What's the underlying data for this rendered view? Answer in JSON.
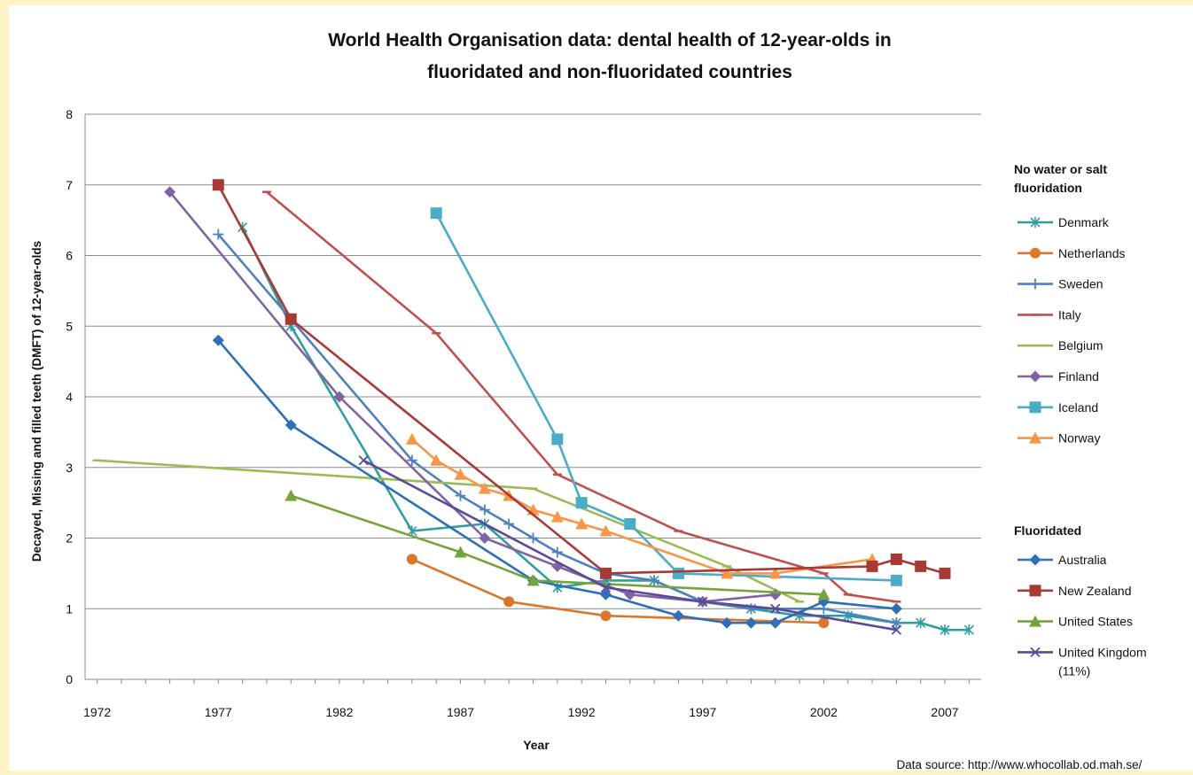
{
  "chart_data": {
    "type": "line",
    "title_line1": "World Health Organisation data: dental health of 12-year-olds in",
    "title_line2": "fluoridated and non-fluoridated countries",
    "xlabel": "Year",
    "ylabel": "Decayed, Missing and filled teeth (DMFT) of 12-year-olds",
    "xlim": [
      1971.5,
      2008.5
    ],
    "ylim": [
      0,
      8
    ],
    "x_ticks": [
      1972,
      1977,
      1982,
      1987,
      1992,
      1997,
      2002,
      2007
    ],
    "y_ticks": [
      0,
      1,
      2,
      3,
      4,
      5,
      6,
      7,
      8
    ],
    "grid": "horizontal",
    "legend_position": "right",
    "source": "Data source: http://www.whocollab.od.mah.se/",
    "legend_groups": [
      {
        "label": "No water or salt fluoridation",
        "series": [
          "Denmark",
          "Netherlands",
          "Sweden",
          "Italy",
          "Belgium",
          "Finland",
          "Iceland",
          "Norway"
        ]
      },
      {
        "label": "Fluoridated",
        "series": [
          "Australia",
          "New Zealand",
          "United States",
          "United Kingdom (11%)"
        ]
      }
    ],
    "series": [
      {
        "name": "Denmark",
        "color": "#2e9e9e",
        "marker": "asterisk",
        "points": [
          [
            1978,
            6.4
          ],
          [
            1980,
            5.0
          ],
          [
            1985,
            2.1
          ],
          [
            1988,
            2.2
          ],
          [
            1991,
            1.3
          ],
          [
            1993,
            1.4
          ],
          [
            1995,
            1.4
          ],
          [
            1997,
            1.1
          ],
          [
            1999,
            1.0
          ],
          [
            2001,
            0.9
          ],
          [
            2003,
            0.9
          ],
          [
            2005,
            0.8
          ],
          [
            2006,
            0.8
          ],
          [
            2007,
            0.7
          ],
          [
            2008,
            0.7
          ]
        ]
      },
      {
        "name": "Netherlands",
        "color": "#d9772b",
        "marker": "circle",
        "points": [
          [
            1985,
            1.7
          ],
          [
            1989,
            1.1
          ],
          [
            1993,
            0.9
          ],
          [
            2002,
            0.8
          ]
        ]
      },
      {
        "name": "Sweden",
        "color": "#4f81bd",
        "marker": "plus",
        "points": [
          [
            1977,
            6.3
          ],
          [
            1980,
            5.1
          ],
          [
            1985,
            3.1
          ],
          [
            1987,
            2.6
          ],
          [
            1988,
            2.4
          ],
          [
            1989,
            2.2
          ],
          [
            1990,
            2.0
          ],
          [
            1991,
            1.8
          ],
          [
            1993,
            1.5
          ],
          [
            1995,
            1.4
          ],
          [
            1997,
            1.1
          ],
          [
            1999,
            1.0
          ],
          [
            2002,
            1.0
          ],
          [
            2005,
            0.8
          ]
        ]
      },
      {
        "name": "Italy",
        "color": "#c0504d",
        "marker": "dash",
        "points": [
          [
            1979,
            6.9
          ],
          [
            1986,
            4.9
          ],
          [
            1991,
            2.9
          ],
          [
            1996,
            2.1
          ],
          [
            2002,
            1.5
          ],
          [
            2003,
            1.2
          ],
          [
            2005,
            1.1
          ]
        ]
      },
      {
        "name": "Belgium",
        "color": "#9bbb59",
        "marker": "dash",
        "points": [
          [
            1972,
            3.1
          ],
          [
            1990,
            2.7
          ],
          [
            1998,
            1.6
          ],
          [
            2001,
            1.1
          ]
        ]
      },
      {
        "name": "Finland",
        "color": "#8064a2",
        "marker": "diamond",
        "points": [
          [
            1975,
            6.9
          ],
          [
            1982,
            4.0
          ],
          [
            1988,
            2.0
          ],
          [
            1991,
            1.6
          ],
          [
            1994,
            1.2
          ],
          [
            1997,
            1.1
          ],
          [
            2000,
            1.2
          ]
        ]
      },
      {
        "name": "Iceland",
        "color": "#4bacc6",
        "marker": "square",
        "points": [
          [
            1986,
            6.6
          ],
          [
            1991,
            3.4
          ],
          [
            1992,
            2.5
          ],
          [
            1994,
            2.2
          ],
          [
            1996,
            1.5
          ],
          [
            2005,
            1.4
          ]
        ]
      },
      {
        "name": "Norway",
        "color": "#f79646",
        "marker": "triangle",
        "points": [
          [
            1985,
            3.4
          ],
          [
            1986,
            3.1
          ],
          [
            1987,
            2.9
          ],
          [
            1988,
            2.7
          ],
          [
            1989,
            2.6
          ],
          [
            1990,
            2.4
          ],
          [
            1991,
            2.3
          ],
          [
            1992,
            2.2
          ],
          [
            1993,
            2.1
          ],
          [
            1998,
            1.5
          ],
          [
            2000,
            1.5
          ],
          [
            2004,
            1.7
          ]
        ]
      },
      {
        "name": "Australia",
        "color": "#2e6fb5",
        "marker": "diamond",
        "points": [
          [
            1977,
            4.8
          ],
          [
            1980,
            3.6
          ],
          [
            1990,
            1.4
          ],
          [
            1993,
            1.2
          ],
          [
            1996,
            0.9
          ],
          [
            1998,
            0.8
          ],
          [
            1999,
            0.8
          ],
          [
            2000,
            0.8
          ],
          [
            2002,
            1.1
          ],
          [
            2005,
            1.0
          ]
        ]
      },
      {
        "name": "New Zealand",
        "color": "#a83a36",
        "marker": "square",
        "points": [
          [
            1977,
            7.0
          ],
          [
            1980,
            5.1
          ],
          [
            1993,
            1.5
          ],
          [
            2004,
            1.6
          ],
          [
            2005,
            1.7
          ],
          [
            2006,
            1.6
          ],
          [
            2007,
            1.5
          ]
        ]
      },
      {
        "name": "United States",
        "color": "#77a33d",
        "marker": "triangle",
        "points": [
          [
            1980,
            2.6
          ],
          [
            1987,
            1.8
          ],
          [
            1990,
            1.4
          ],
          [
            2002,
            1.2
          ]
        ]
      },
      {
        "name": "United Kingdom (11%)",
        "color": "#5a4a9a",
        "marker": "x",
        "points": [
          [
            1983,
            3.1
          ],
          [
            1993,
            1.3
          ],
          [
            1997,
            1.1
          ],
          [
            2000,
            1.0
          ],
          [
            2005,
            0.7
          ]
        ]
      }
    ]
  }
}
